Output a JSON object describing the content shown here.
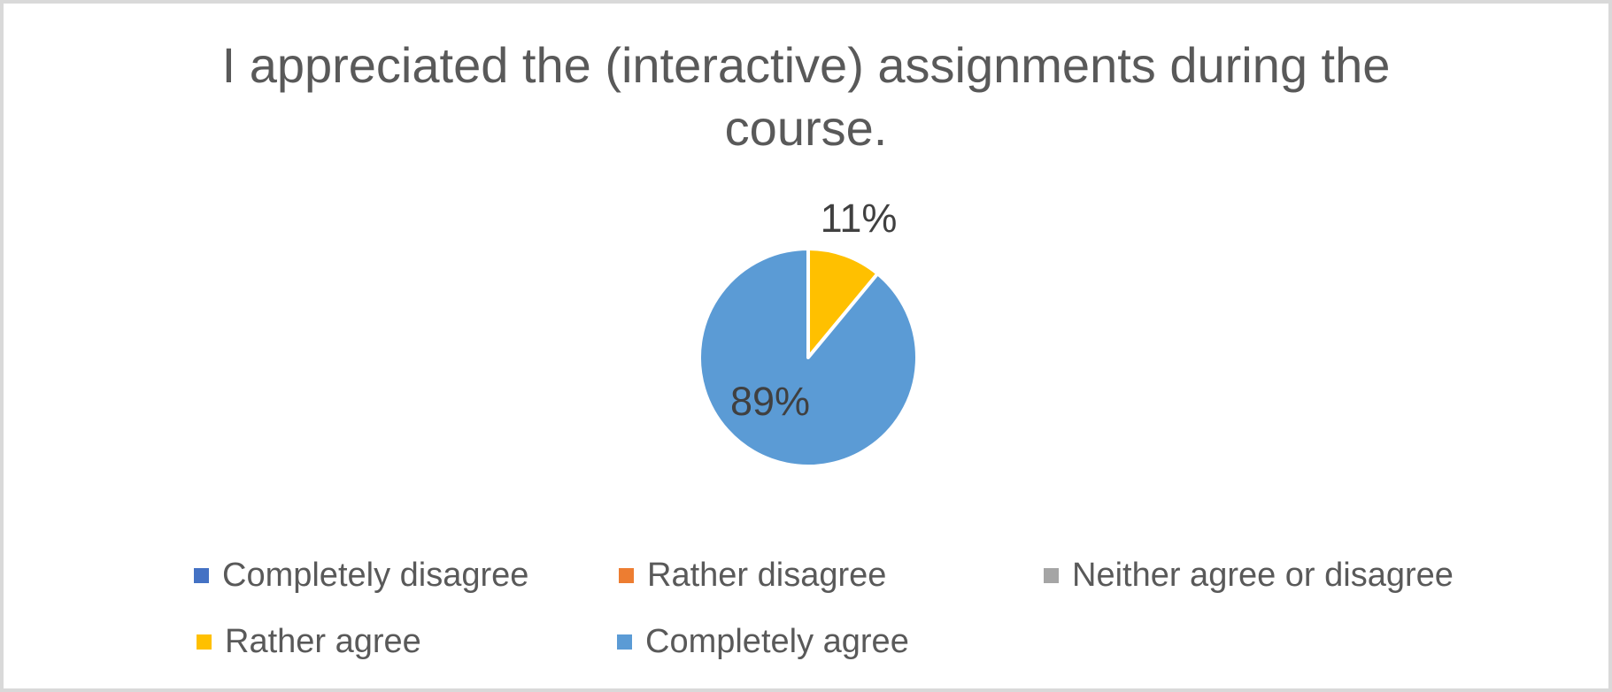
{
  "chart_data": {
    "type": "pie",
    "title": "I appreciated the (interactive) assignments during the course.",
    "categories": [
      "Completely disagree",
      "Rather disagree",
      "Neither agree or disagree",
      "Rather agree",
      "Completely agree"
    ],
    "values": [
      0,
      0,
      0,
      11,
      89
    ],
    "unit": "%",
    "colors": [
      "#4472C4",
      "#ED7D31",
      "#A5A5A5",
      "#FFC000",
      "#5B9BD5"
    ],
    "slice_border_color": "#FFFFFF",
    "start_angle_deg": 0,
    "direction": "clockwise",
    "legend_position": "bottom",
    "data_labels": [
      {
        "category": "Rather agree",
        "text": "11%"
      },
      {
        "category": "Completely agree",
        "text": "89%"
      }
    ]
  },
  "styles": {
    "title_color": "#595959",
    "label_color": "#404040",
    "legend_text_color": "#595959",
    "frame_border_color": "#D9D9D9"
  }
}
